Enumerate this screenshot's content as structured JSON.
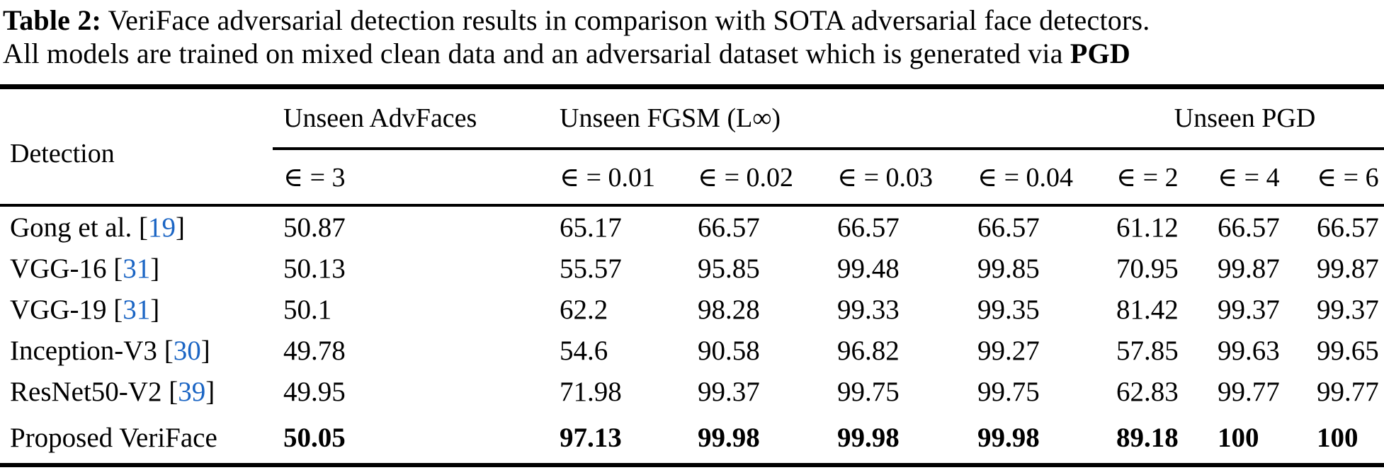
{
  "caption": {
    "label": "Table 2:",
    "line1_rest": " VeriFace adversarial detection results in comparison with SOTA adversarial face detectors.",
    "line2_prefix": "All models are trained on mixed clean data and an adversarial dataset which is generated via ",
    "line2_bold": "PGD"
  },
  "table": {
    "corner_header": "Detection",
    "groups": {
      "advfaces": "Unseen AdvFaces",
      "fgsm": "Unseen FGSM (L∞)",
      "pgd": "Unseen PGD"
    },
    "sub_headers": [
      "∈ = 3",
      "∈ = 0.01",
      "∈ = 0.02",
      "∈ = 0.03",
      "∈ = 0.04",
      "∈ = 2",
      "∈ = 4",
      "∈ = 6"
    ],
    "citation_color": "#1b65c4",
    "rows": [
      {
        "model": "Gong et al.",
        "cite_open": " [",
        "cite": "19",
        "cite_close": "]",
        "values": [
          "50.87",
          "65.17",
          "66.57",
          "66.57",
          "66.57",
          "61.12",
          "66.57",
          "66.57"
        ]
      },
      {
        "model": "VGG-16",
        "cite_open": " [",
        "cite": "31",
        "cite_close": "]",
        "values": [
          "50.13",
          "55.57",
          "95.85",
          "99.48",
          "99.85",
          "70.95",
          "99.87",
          "99.87"
        ]
      },
      {
        "model": "VGG-19",
        "cite_open": " [",
        "cite": "31",
        "cite_close": "]",
        "values": [
          "50.1",
          "62.2",
          "98.28",
          "99.33",
          "99.35",
          "81.42",
          "99.37",
          "99.37"
        ]
      },
      {
        "model": "Inception-V3",
        "cite_open": " [",
        "cite": "30",
        "cite_close": "]",
        "values": [
          "49.78",
          "54.6",
          "90.58",
          "96.82",
          "99.27",
          "57.85",
          "99.63",
          "99.65"
        ]
      },
      {
        "model": "ResNet50-V2",
        "cite_open": " [",
        "cite": "39",
        "cite_close": "]",
        "values": [
          "49.95",
          "71.98",
          "99.37",
          "99.75",
          "99.75",
          "62.83",
          "99.77",
          "99.77"
        ]
      },
      {
        "model": "Proposed VeriFace",
        "cite_open": "",
        "cite": "",
        "cite_close": "",
        "values": [
          "50.05",
          "97.13",
          "99.98",
          "99.98",
          "99.98",
          "89.18",
          "100",
          "100"
        ]
      }
    ]
  }
}
